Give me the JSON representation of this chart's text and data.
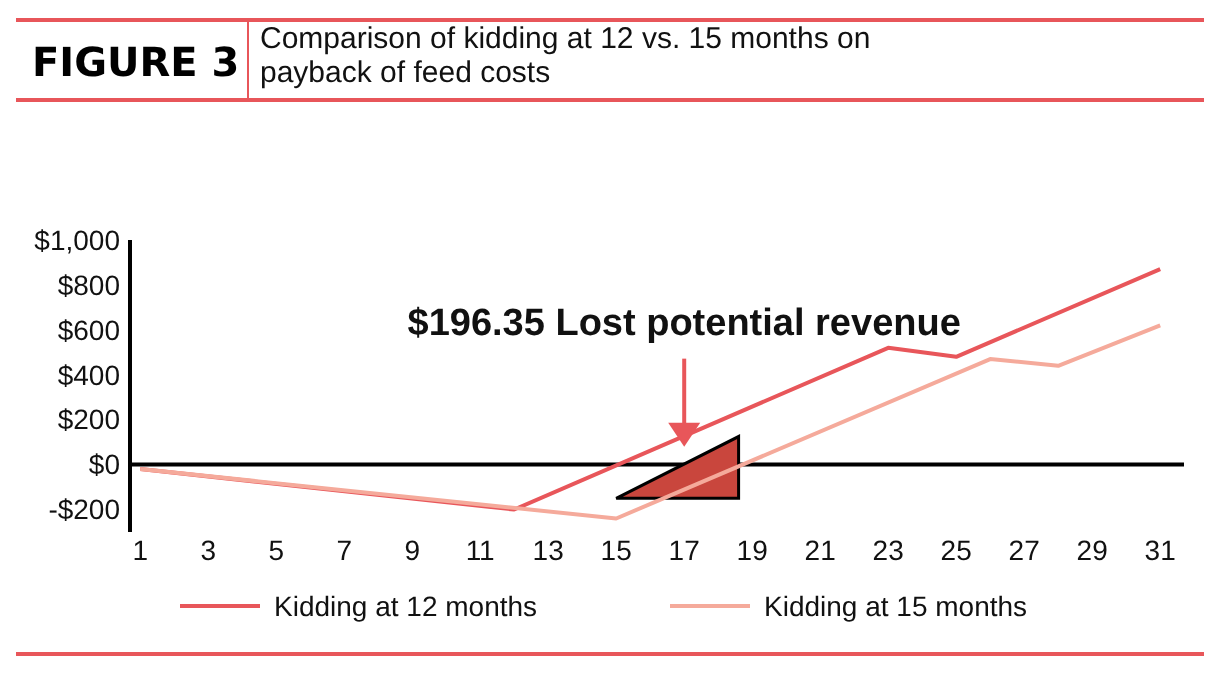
{
  "chart_data": {
    "type": "line",
    "title": "FIGURE 3",
    "subtitle": "Comparison of kidding at 12 vs. 15 months on payback of feed costs",
    "series": [
      {
        "name": "Kidding at 12 months",
        "color": "#e8565a",
        "x": [
          1,
          12,
          23,
          25,
          31
        ],
        "values": [
          -20,
          -200,
          520,
          480,
          870
        ]
      },
      {
        "name": "Kidding at 15 months",
        "color": "#f5aa9b",
        "x": [
          1,
          15,
          26,
          28,
          31
        ],
        "values": [
          -20,
          -240,
          470,
          440,
          620
        ]
      }
    ],
    "xlim": [
      0.7,
      31.7
    ],
    "xticks": [
      1,
      3,
      5,
      7,
      9,
      11,
      13,
      15,
      17,
      19,
      21,
      23,
      25,
      27,
      29,
      31
    ],
    "ylim": [
      -300,
      1000
    ],
    "yticks": [
      {
        "value": -200,
        "label": "-$200"
      },
      {
        "value": 0,
        "label": "$0"
      },
      {
        "value": 200,
        "label": "$200"
      },
      {
        "value": 400,
        "label": "$400"
      },
      {
        "value": 600,
        "label": "$600"
      },
      {
        "value": 800,
        "label": "$800"
      },
      {
        "value": 1000,
        "label": "$1,000"
      }
    ],
    "annotations": [
      {
        "text": "$196.35 Lost potential revenue",
        "x": 17,
        "y": 80
      }
    ],
    "legend": "bottom",
    "grid": false,
    "marker": "none",
    "line_style": "solid"
  }
}
